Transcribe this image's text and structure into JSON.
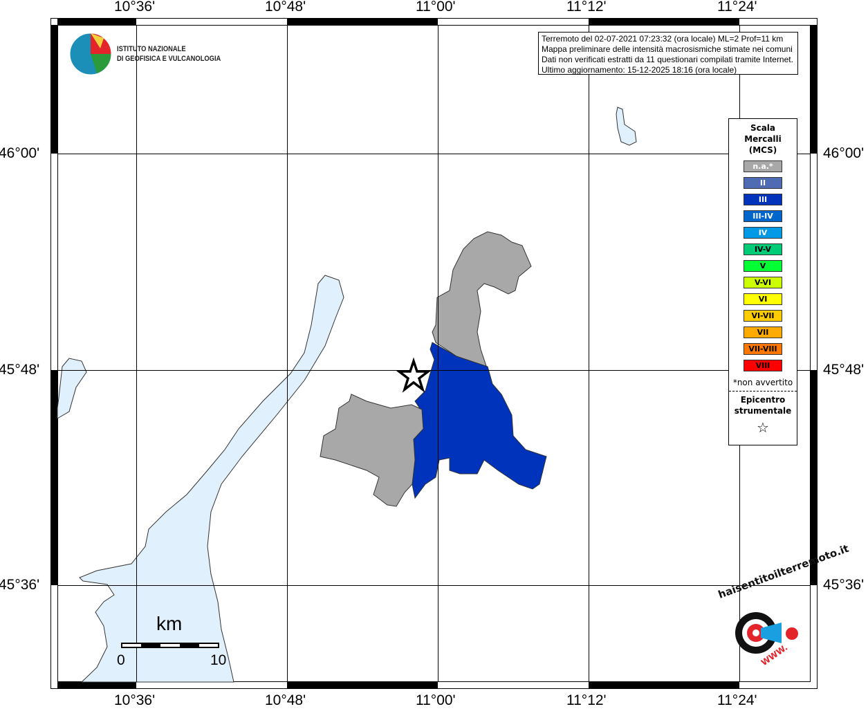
{
  "map": {
    "x_ticks": [
      "10°36'",
      "10°48'",
      "11°00'",
      "11°12'",
      "11°24'"
    ],
    "y_ticks": [
      "46°00'",
      "45°48'",
      "45°36'"
    ],
    "colors": {
      "lake": "#e0f0fc",
      "not_felt": "#a8a8a8",
      "III": "#0033bb"
    },
    "epicenter_icon": "star-icon"
  },
  "header_logo": {
    "line1": "ISTITUTO NAZIONALE",
    "line2": "DI GEOFISICA E VULCANOLOGIA"
  },
  "info": {
    "lines": [
      "Terremoto del 02-07-2021 07:23:32 (ora locale) ML=2 Prof=11 km",
      "Mappa preliminare delle intensità macrosismiche stimate nei comuni",
      "Dati non verificati estratti da 11 questionari compilati tramite Internet.",
      "Ultimo aggiornamento: 15-12-2025 18:16 (ora locale)"
    ]
  },
  "legend": {
    "title": [
      "Scala",
      "Mercalli",
      "(MCS)"
    ],
    "items": [
      {
        "label": "n.a.*",
        "color": "#a8a8a8",
        "text": "#fff"
      },
      {
        "label": "II",
        "color": "#4f6bb3",
        "text": "#fff"
      },
      {
        "label": "III",
        "color": "#0033bb",
        "text": "#fff"
      },
      {
        "label": "III-IV",
        "color": "#0066cc",
        "text": "#fff"
      },
      {
        "label": "IV",
        "color": "#0099e6",
        "text": "#fff"
      },
      {
        "label": "IV-V",
        "color": "#00cc77",
        "text": "#000"
      },
      {
        "label": "V",
        "color": "#00ff33",
        "text": "#000"
      },
      {
        "label": "V-VI",
        "color": "#ccff00",
        "text": "#000"
      },
      {
        "label": "VI",
        "color": "#ffff00",
        "text": "#000"
      },
      {
        "label": "VI-VII",
        "color": "#ffcc00",
        "text": "#000"
      },
      {
        "label": "VII",
        "color": "#ffaa00",
        "text": "#000"
      },
      {
        "label": "VII-VIII",
        "color": "#ff7700",
        "text": "#000"
      },
      {
        "label": "VIII",
        "color": "#ff0000",
        "text": "#000"
      }
    ],
    "note": "*non avvertito",
    "epicenter": [
      "Epicentro",
      "strumentale"
    ],
    "epicenter_symbol": "☆"
  },
  "scale_bar": {
    "unit": "km",
    "start": "0",
    "end": "10"
  },
  "footer_logo": {
    "text": "haisentitoilterremoto.it",
    "www": "WWW."
  }
}
